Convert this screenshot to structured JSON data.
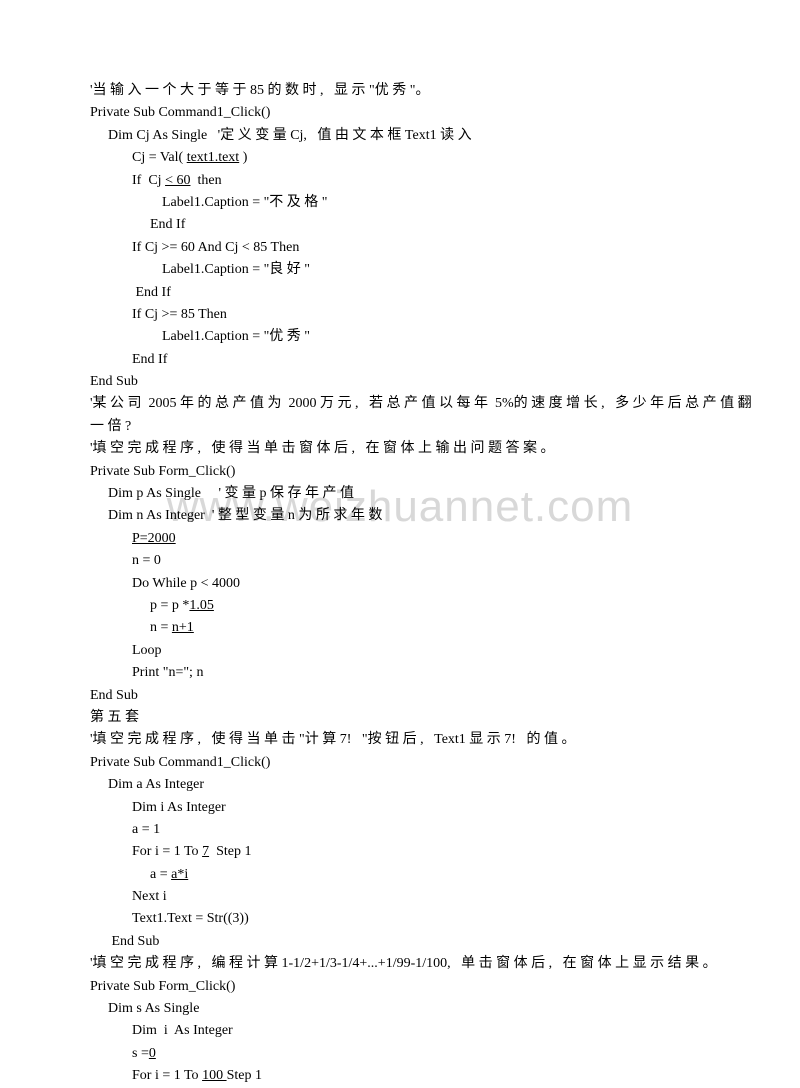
{
  "watermark": "www.weizhuannet.com",
  "lines": [
    {
      "cls": "",
      "parts": [
        {
          "t": "'当 输 入 一 个 大 于 等 于 85 的 数 时 ,   显 示 \"优 秀 \"。"
        }
      ]
    },
    {
      "cls": "",
      "parts": [
        {
          "t": "Private Sub Command1_Click()"
        }
      ]
    },
    {
      "cls": "indent1",
      "parts": [
        {
          "t": "Dim Cj As Single   '定 义 变 量 Cj,   值 由 文 本 框 Text1 读 入"
        }
      ]
    },
    {
      "cls": "indent2",
      "parts": [
        {
          "t": "Cj = Val( "
        },
        {
          "t": "text1.text",
          "u": true
        },
        {
          "t": " )"
        }
      ]
    },
    {
      "cls": "indent2",
      "parts": [
        {
          "t": "If  Cj "
        },
        {
          "t": "< 60",
          "u": true
        },
        {
          "t": "  then"
        }
      ]
    },
    {
      "cls": "indent4",
      "parts": [
        {
          "t": "Label1.Caption = \"不 及 格 \""
        }
      ]
    },
    {
      "cls": "indent3",
      "parts": [
        {
          "t": "End If"
        }
      ]
    },
    {
      "cls": "indent2",
      "parts": [
        {
          "t": "If Cj >= 60 And Cj < 85 Then"
        }
      ]
    },
    {
      "cls": "indent4",
      "parts": [
        {
          "t": "Label1.Caption = \"良 好 \""
        }
      ]
    },
    {
      "cls": "indent2",
      "parts": [
        {
          "t": " End If"
        }
      ]
    },
    {
      "cls": "indent2",
      "parts": [
        {
          "t": "If Cj >= 85 Then"
        }
      ]
    },
    {
      "cls": "indent4",
      "parts": [
        {
          "t": "Label1.Caption = \"优 秀 \""
        }
      ]
    },
    {
      "cls": "indent2",
      "parts": [
        {
          "t": "End If"
        }
      ]
    },
    {
      "cls": "",
      "parts": [
        {
          "t": "End Sub"
        }
      ]
    },
    {
      "cls": "",
      "parts": [
        {
          "t": "'某 公 司  2005 年 的 总 产 值 为  2000 万 元 ,   若 总 产 值 以 每 年  5%的 速 度 增 长 ,   多 少 年 后 总 产 值 翻"
        }
      ]
    },
    {
      "cls": "",
      "parts": [
        {
          "t": "一 倍 ?"
        }
      ]
    },
    {
      "cls": "",
      "parts": [
        {
          "t": "'填 空 完 成 程 序 ,   使 得 当 单 击 窗 体 后 ,   在 窗 体 上 输 出 问 题 答 案 。"
        }
      ]
    },
    {
      "cls": "",
      "parts": [
        {
          "t": "Private Sub Form_Click()"
        }
      ]
    },
    {
      "cls": "indent1",
      "parts": [
        {
          "t": "Dim p As Single     ' 变 量 p 保 存 年 产 值"
        }
      ]
    },
    {
      "cls": "indent1",
      "parts": [
        {
          "t": "Dim n As Integer  ' 整 型 变 量 n 为 所 求 年 数"
        }
      ]
    },
    {
      "cls": "indent2",
      "parts": [
        {
          "t": "P=2000",
          "u": true
        }
      ]
    },
    {
      "cls": "indent2",
      "parts": [
        {
          "t": "n = 0"
        }
      ]
    },
    {
      "cls": "indent2",
      "parts": [
        {
          "t": "Do While p < 4000"
        }
      ]
    },
    {
      "cls": "indent3",
      "parts": [
        {
          "t": "p = p *"
        },
        {
          "t": "1.05",
          "u": true
        }
      ]
    },
    {
      "cls": "indent3",
      "parts": [
        {
          "t": "n = "
        },
        {
          "t": "n+1",
          "u": true
        }
      ]
    },
    {
      "cls": "indent2",
      "parts": [
        {
          "t": "Loop"
        }
      ]
    },
    {
      "cls": "indent2",
      "parts": [
        {
          "t": "Print \"n=\"; n"
        }
      ]
    },
    {
      "cls": "",
      "parts": [
        {
          "t": "End Sub"
        }
      ]
    },
    {
      "cls": "",
      "parts": [
        {
          "t": "第 五 套"
        }
      ]
    },
    {
      "cls": "",
      "parts": [
        {
          "t": "'填 空 完 成 程 序 ,   使 得 当 单 击 \"计 算 7!   \"按 钮 后 ,   Text1 显 示 7!   的 值 。"
        }
      ]
    },
    {
      "cls": "",
      "parts": [
        {
          "t": "Private Sub Command1_Click()"
        }
      ]
    },
    {
      "cls": "indent1",
      "parts": [
        {
          "t": "Dim a As Integer"
        }
      ]
    },
    {
      "cls": "indent2",
      "parts": [
        {
          "t": "Dim i As Integer"
        }
      ]
    },
    {
      "cls": "indent2",
      "parts": [
        {
          "t": "a = 1"
        }
      ]
    },
    {
      "cls": "indent2",
      "parts": [
        {
          "t": "For i = 1 To "
        },
        {
          "t": "7",
          "u": true
        },
        {
          "t": "  Step 1"
        }
      ]
    },
    {
      "cls": "indent3",
      "parts": [
        {
          "t": "a = "
        },
        {
          "t": "a*i",
          "u": true
        }
      ]
    },
    {
      "cls": "indent2",
      "parts": [
        {
          "t": "Next i"
        }
      ]
    },
    {
      "cls": "indent2",
      "parts": [
        {
          "t": "Text1.Text = Str((3))"
        }
      ]
    },
    {
      "cls": "indent1",
      "parts": [
        {
          "t": " End Sub"
        }
      ]
    },
    {
      "cls": "",
      "parts": [
        {
          "t": "'填 空 完 成 程 序 ,   编 程 计 算 1-1/2+1/3-1/4+...+1/99-1/100,   单 击 窗 体 后 ,   在 窗 体 上 显 示 结 果 。"
        }
      ]
    },
    {
      "cls": "",
      "parts": [
        {
          "t": "Private Sub Form_Click()"
        }
      ]
    },
    {
      "cls": "indent1",
      "parts": [
        {
          "t": "Dim s As Single"
        }
      ]
    },
    {
      "cls": "indent2",
      "parts": [
        {
          "t": "Dim  i  As Integer"
        }
      ]
    },
    {
      "cls": "indent2",
      "parts": [
        {
          "t": "s ="
        },
        {
          "t": "0",
          "u": true
        }
      ]
    },
    {
      "cls": "indent2",
      "parts": [
        {
          "t": "For i = 1 To "
        },
        {
          "t": "100 ",
          "u": true
        },
        {
          "t": "Step 1"
        }
      ]
    }
  ]
}
